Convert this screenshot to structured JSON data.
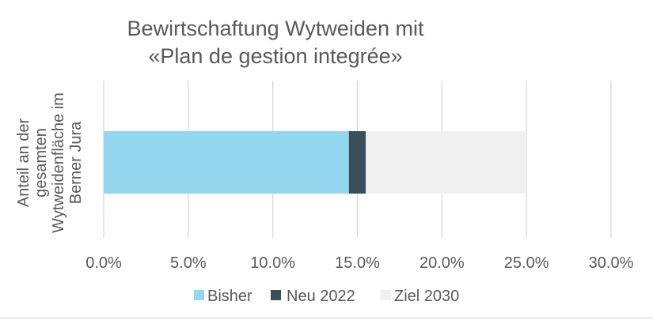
{
  "chart_data": {
    "type": "bar",
    "orientation": "horizontal",
    "stacked": true,
    "title": [
      "Bewirtschaftung Wytweiden mit",
      "«Plan de gestion integrée»"
    ],
    "categories": [
      "Anteil an der gesamten Wytweidenfläche im Berner Jura"
    ],
    "category_label_lines": [
      "Anteil an der",
      "gesamten",
      "Wytweidenfläche im",
      "Berner Jura"
    ],
    "series": [
      {
        "name": "Bisher",
        "values": [
          14.5
        ],
        "color": "#94d6ee"
      },
      {
        "name": "Neu 2022",
        "values": [
          1.0
        ],
        "color": "#3a4f5a"
      },
      {
        "name": "Ziel 2030",
        "values": [
          9.5
        ],
        "color": "#f0f0f0"
      }
    ],
    "xlim": [
      0,
      30
    ],
    "xticks": [
      0,
      5,
      10,
      15,
      20,
      25,
      30
    ],
    "xtick_labels": [
      "0.0%",
      "5.0%",
      "10.0%",
      "15.0%",
      "20.0%",
      "25.0%",
      "30.0%"
    ],
    "grid": true,
    "legend_position": "bottom",
    "gridline_color": "#d9d9d9"
  }
}
